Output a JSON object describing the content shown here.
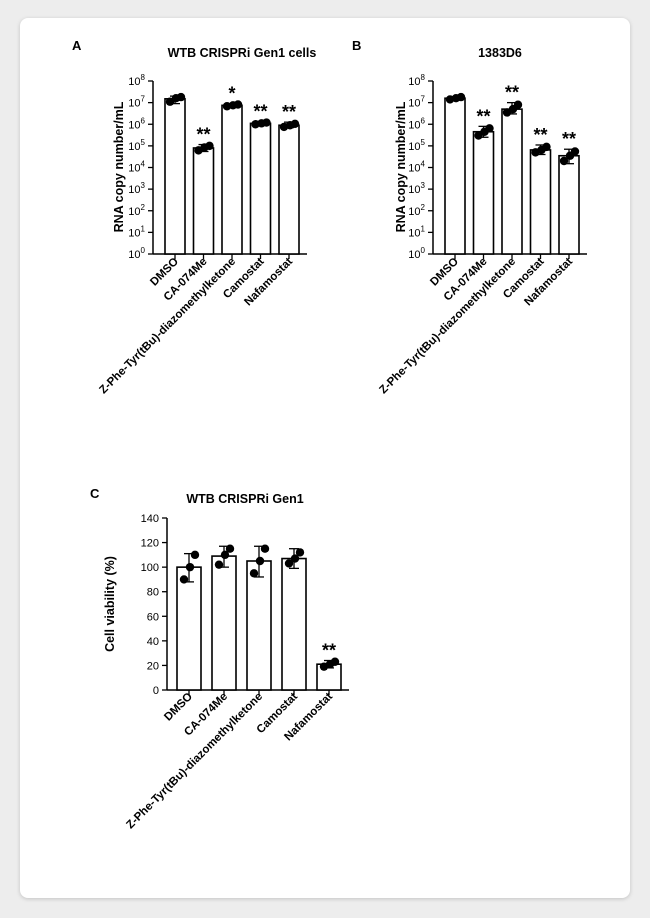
{
  "colors": {
    "bar_fill": "#ffffff",
    "stroke": "#000000",
    "dot": "#000000",
    "page_bg": "#ededed",
    "card_bg": "#ffffff"
  },
  "chart_data": [
    {
      "panel_label": "A",
      "type": "bar",
      "title": "WTB CRISPRi Gen1 cells",
      "ylabel": "RNA copy number/mL",
      "yscale": "log",
      "ylim": [
        1,
        100000000
      ],
      "yticks": [
        {
          "value": 1,
          "base": "10",
          "exp": "0"
        },
        {
          "value": 10,
          "base": "10",
          "exp": "1"
        },
        {
          "value": 100,
          "base": "10",
          "exp": "2"
        },
        {
          "value": 1000,
          "base": "10",
          "exp": "3"
        },
        {
          "value": 10000,
          "base": "10",
          "exp": "4"
        },
        {
          "value": 100000,
          "base": "10",
          "exp": "5"
        },
        {
          "value": 1000000,
          "base": "10",
          "exp": "6"
        },
        {
          "value": 10000000,
          "base": "10",
          "exp": "7"
        },
        {
          "value": 100000000,
          "base": "10",
          "exp": "8"
        }
      ],
      "categories": [
        "DMSO",
        "CA-074Me",
        "Z-Phe-Tyr(tBu)-diazomethylketone",
        "Camostat",
        "Nafamostat"
      ],
      "values": [
        15000000,
        80000,
        7500000,
        1100000,
        900000
      ],
      "errors_low": [
        9000000,
        55000,
        6500000,
        950000,
        700000
      ],
      "errors_high": [
        20000000,
        115000,
        9000000,
        1350000,
        1250000
      ],
      "points": [
        [
          11000000,
          16000000,
          18000000
        ],
        [
          62000,
          85000,
          100000
        ],
        [
          6800000,
          7500000,
          8200000
        ],
        [
          1000000,
          1100000,
          1200000
        ],
        [
          750000,
          900000,
          1050000
        ]
      ],
      "significance": [
        "",
        "**",
        "*",
        "**",
        "**"
      ]
    },
    {
      "panel_label": "B",
      "type": "bar",
      "title": "1383D6",
      "ylabel": "RNA copy number/mL",
      "yscale": "log",
      "ylim": [
        1,
        100000000
      ],
      "yticks": [
        {
          "value": 1,
          "base": "10",
          "exp": "0"
        },
        {
          "value": 10,
          "base": "10",
          "exp": "1"
        },
        {
          "value": 100,
          "base": "10",
          "exp": "2"
        },
        {
          "value": 1000,
          "base": "10",
          "exp": "3"
        },
        {
          "value": 10000,
          "base": "10",
          "exp": "4"
        },
        {
          "value": 100000,
          "base": "10",
          "exp": "5"
        },
        {
          "value": 1000000,
          "base": "10",
          "exp": "6"
        },
        {
          "value": 10000000,
          "base": "10",
          "exp": "7"
        },
        {
          "value": 100000000,
          "base": "10",
          "exp": "8"
        }
      ],
      "categories": [
        "DMSO",
        "CA-074Me",
        "Z-Phe-Tyr(tBu)-diazomethylketone",
        "Camostat",
        "Nafamostat"
      ],
      "values": [
        16000000,
        450000,
        5000000,
        65000,
        35000
      ],
      "errors_low": [
        14000000,
        250000,
        3000000,
        40000,
        15000
      ],
      "errors_high": [
        19000000,
        800000,
        10000000,
        110000,
        70000
      ],
      "points": [
        [
          14000000,
          16000000,
          18000000
        ],
        [
          300000,
          450000,
          650000
        ],
        [
          3500000,
          5000000,
          8000000
        ],
        [
          50000,
          65000,
          90000
        ],
        [
          20000,
          35000,
          55000
        ]
      ],
      "significance": [
        "",
        "**",
        "**",
        "**",
        "**"
      ]
    },
    {
      "panel_label": "C",
      "type": "bar",
      "title": "WTB CRISPRi Gen1",
      "ylabel": "Cell viability (%)",
      "yscale": "linear",
      "ylim": [
        0,
        140
      ],
      "yticks": [
        {
          "value": 0,
          "base": "0",
          "exp": ""
        },
        {
          "value": 20,
          "base": "20",
          "exp": ""
        },
        {
          "value": 40,
          "base": "40",
          "exp": ""
        },
        {
          "value": 60,
          "base": "60",
          "exp": ""
        },
        {
          "value": 80,
          "base": "80",
          "exp": ""
        },
        {
          "value": 100,
          "base": "100",
          "exp": ""
        },
        {
          "value": 120,
          "base": "120",
          "exp": ""
        },
        {
          "value": 140,
          "base": "140",
          "exp": ""
        }
      ],
      "categories": [
        "DMSO",
        "CA-074Me",
        "Z-Phe-Tyr(tBu)-diazomethylketone",
        "Camostat",
        "Nafamostat"
      ],
      "values": [
        100,
        109,
        105,
        107,
        21
      ],
      "errors_low": [
        88,
        100,
        92,
        99,
        18
      ],
      "errors_high": [
        111,
        117,
        117,
        115,
        24
      ],
      "points": [
        [
          90,
          100,
          110
        ],
        [
          102,
          110,
          115
        ],
        [
          95,
          105,
          115
        ],
        [
          103,
          107,
          112
        ],
        [
          19,
          21,
          23
        ]
      ],
      "significance": [
        "",
        "",
        "",
        "",
        "**"
      ]
    }
  ]
}
